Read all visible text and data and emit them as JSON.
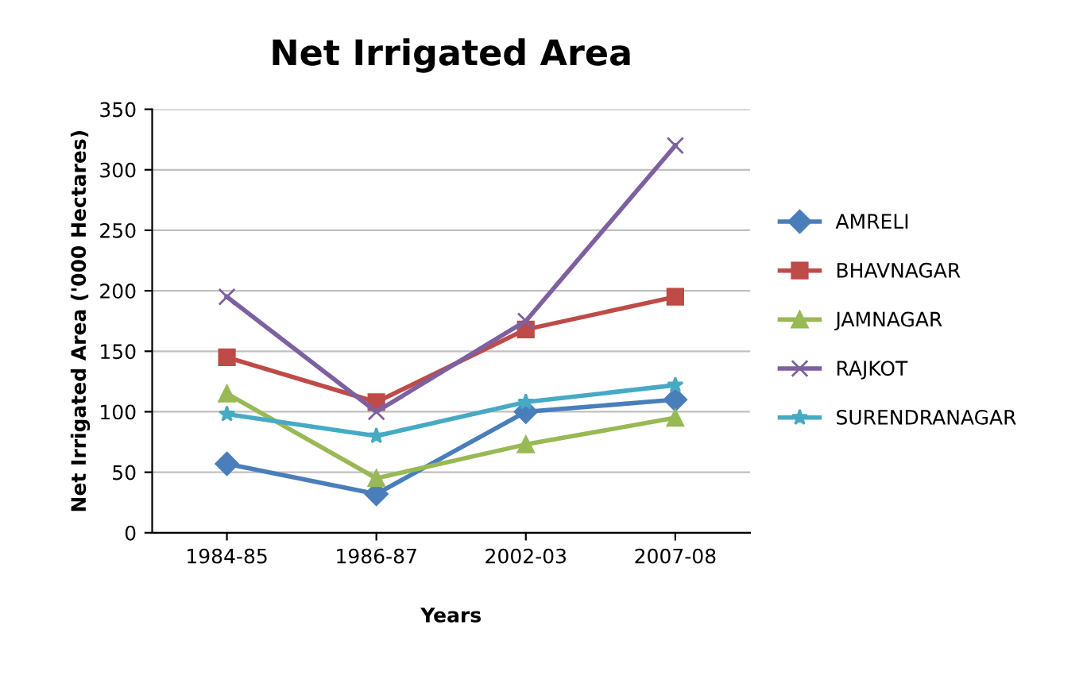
{
  "chart_data": {
    "type": "line",
    "title": "Net Irrigated Area",
    "xlabel": "Years",
    "ylabel": "Net Irrigated Area ('000 Hectares)",
    "categories": [
      "1984-85",
      "1986-87",
      "2002-03",
      "2007-08"
    ],
    "series": [
      {
        "name": "AMRELI",
        "color": "#4a7ebb",
        "marker": "diamond",
        "values": [
          57,
          32,
          100,
          110
        ]
      },
      {
        "name": "BHAVNAGAR",
        "color": "#be4b48",
        "marker": "square",
        "values": [
          145,
          108,
          168,
          195
        ]
      },
      {
        "name": "JAMNAGAR",
        "color": "#98b954",
        "marker": "triangle",
        "values": [
          115,
          45,
          73,
          95
        ]
      },
      {
        "name": "RAJKOT",
        "color": "#7d60a0",
        "marker": "cross",
        "values": [
          195,
          100,
          175,
          320
        ]
      },
      {
        "name": "SURENDRANAGAR",
        "color": "#46aac5",
        "marker": "star",
        "values": [
          98,
          80,
          108,
          122
        ]
      }
    ],
    "ylim": [
      0,
      350
    ],
    "yticks": [
      0,
      50,
      100,
      150,
      200,
      250,
      300,
      350
    ],
    "grid": "y",
    "legend": "right",
    "line_style": "solid"
  }
}
